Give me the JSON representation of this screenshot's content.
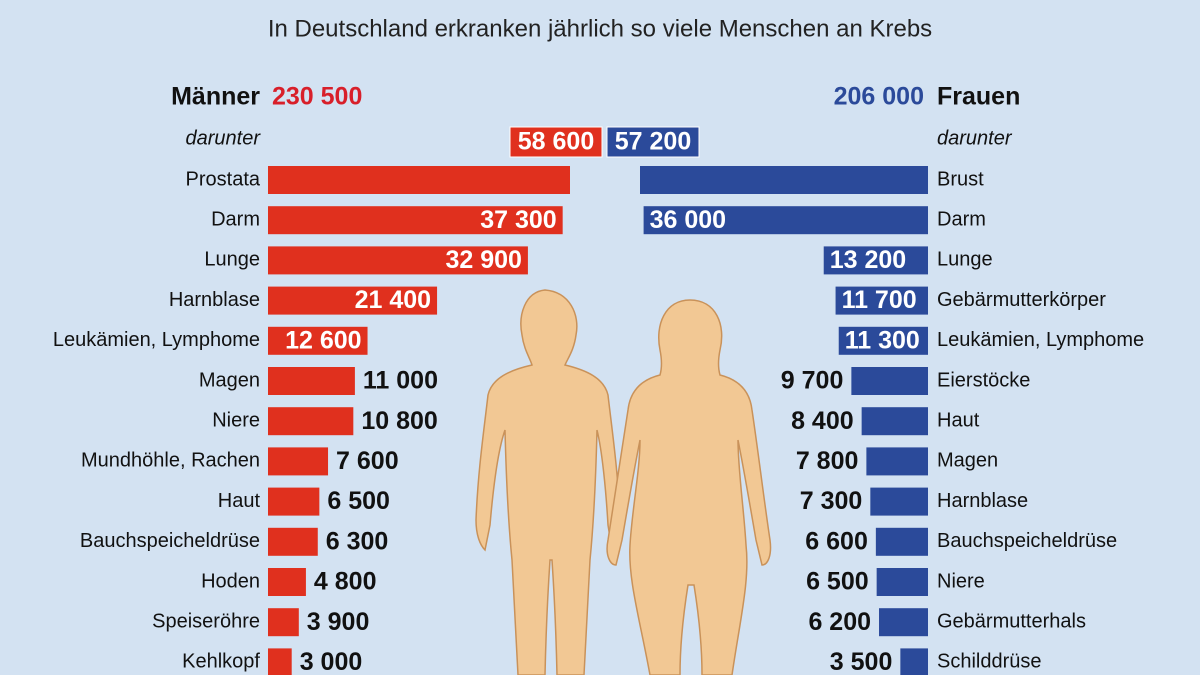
{
  "chart_data": {
    "type": "butterfly-bar",
    "subtitle": "In Deutschland erkranken jährlich so viele Menschen an Krebs",
    "series": [
      {
        "name": "Männer",
        "total": 230500,
        "total_label": "230 500",
        "note": "darunter",
        "color": "#e0301e",
        "categories": [
          "Prostata",
          "Darm",
          "Lunge",
          "Harnblase",
          "Leukämien, Lymphome",
          "Magen",
          "Niere",
          "Mundhöhle, Rachen",
          "Haut",
          "Bauchspeicheldrüse",
          "Hoden",
          "Speiseröhre",
          "Kehlkopf"
        ],
        "values": [
          58600,
          37300,
          32900,
          21400,
          12600,
          11000,
          10800,
          7600,
          6500,
          6300,
          4800,
          3900,
          3000
        ],
        "value_labels": [
          "58 600",
          "37 300",
          "32 900",
          "21 400",
          "12 600",
          "11 000",
          "10 800",
          "7 600",
          "6 500",
          "6 300",
          "4 800",
          "3 900",
          "3 000"
        ]
      },
      {
        "name": "Frauen",
        "total": 206000,
        "total_label": "206 000",
        "note": "darunter",
        "color": "#2b4a9a",
        "categories": [
          "Brust",
          "Darm",
          "Lunge",
          "Gebärmutterkörper",
          "Leukämien, Lymphome",
          "Eierstöcke",
          "Haut",
          "Magen",
          "Harnblase",
          "Bauchspeicheldrüse",
          "Niere",
          "Gebärmutterhals",
          "Schilddrüse"
        ],
        "values": [
          57200,
          36000,
          13200,
          11700,
          11300,
          9700,
          8400,
          7800,
          7300,
          6600,
          6500,
          6200,
          3500
        ],
        "value_labels": [
          "57 200",
          "36 000",
          "13 200",
          "11 700",
          "11 300",
          "9 700",
          "8 400",
          "7 800",
          "7 300",
          "6 600",
          "6 500",
          "6 200",
          "3 500"
        ]
      }
    ]
  }
}
